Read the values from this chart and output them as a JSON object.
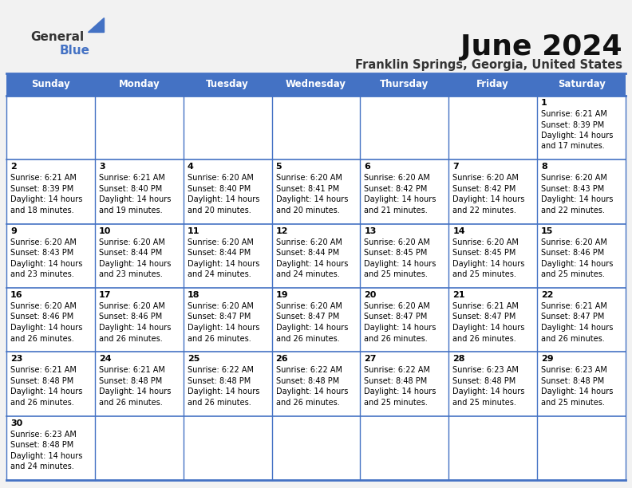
{
  "title": "June 2024",
  "subtitle": "Franklin Springs, Georgia, United States",
  "header_color": "#4472C4",
  "header_text_color": "#FFFFFF",
  "day_names": [
    "Sunday",
    "Monday",
    "Tuesday",
    "Wednesday",
    "Thursday",
    "Friday",
    "Saturday"
  ],
  "bg_color": "#F2F2F2",
  "cell_bg_white": "#FFFFFF",
  "border_color": "#4472C4",
  "number_color": "#000000",
  "text_color": "#000000",
  "days": [
    {
      "day": 1,
      "col": 6,
      "row": 0,
      "sunrise": "6:21 AM",
      "sunset": "8:39 PM",
      "dl1": "Daylight: 14 hours",
      "dl2": "and 17 minutes."
    },
    {
      "day": 2,
      "col": 0,
      "row": 1,
      "sunrise": "6:21 AM",
      "sunset": "8:39 PM",
      "dl1": "Daylight: 14 hours",
      "dl2": "and 18 minutes."
    },
    {
      "day": 3,
      "col": 1,
      "row": 1,
      "sunrise": "6:21 AM",
      "sunset": "8:40 PM",
      "dl1": "Daylight: 14 hours",
      "dl2": "and 19 minutes."
    },
    {
      "day": 4,
      "col": 2,
      "row": 1,
      "sunrise": "6:20 AM",
      "sunset": "8:40 PM",
      "dl1": "Daylight: 14 hours",
      "dl2": "and 20 minutes."
    },
    {
      "day": 5,
      "col": 3,
      "row": 1,
      "sunrise": "6:20 AM",
      "sunset": "8:41 PM",
      "dl1": "Daylight: 14 hours",
      "dl2": "and 20 minutes."
    },
    {
      "day": 6,
      "col": 4,
      "row": 1,
      "sunrise": "6:20 AM",
      "sunset": "8:42 PM",
      "dl1": "Daylight: 14 hours",
      "dl2": "and 21 minutes."
    },
    {
      "day": 7,
      "col": 5,
      "row": 1,
      "sunrise": "6:20 AM",
      "sunset": "8:42 PM",
      "dl1": "Daylight: 14 hours",
      "dl2": "and 22 minutes."
    },
    {
      "day": 8,
      "col": 6,
      "row": 1,
      "sunrise": "6:20 AM",
      "sunset": "8:43 PM",
      "dl1": "Daylight: 14 hours",
      "dl2": "and 22 minutes."
    },
    {
      "day": 9,
      "col": 0,
      "row": 2,
      "sunrise": "6:20 AM",
      "sunset": "8:43 PM",
      "dl1": "Daylight: 14 hours",
      "dl2": "and 23 minutes."
    },
    {
      "day": 10,
      "col": 1,
      "row": 2,
      "sunrise": "6:20 AM",
      "sunset": "8:44 PM",
      "dl1": "Daylight: 14 hours",
      "dl2": "and 23 minutes."
    },
    {
      "day": 11,
      "col": 2,
      "row": 2,
      "sunrise": "6:20 AM",
      "sunset": "8:44 PM",
      "dl1": "Daylight: 14 hours",
      "dl2": "and 24 minutes."
    },
    {
      "day": 12,
      "col": 3,
      "row": 2,
      "sunrise": "6:20 AM",
      "sunset": "8:44 PM",
      "dl1": "Daylight: 14 hours",
      "dl2": "and 24 minutes."
    },
    {
      "day": 13,
      "col": 4,
      "row": 2,
      "sunrise": "6:20 AM",
      "sunset": "8:45 PM",
      "dl1": "Daylight: 14 hours",
      "dl2": "and 25 minutes."
    },
    {
      "day": 14,
      "col": 5,
      "row": 2,
      "sunrise": "6:20 AM",
      "sunset": "8:45 PM",
      "dl1": "Daylight: 14 hours",
      "dl2": "and 25 minutes."
    },
    {
      "day": 15,
      "col": 6,
      "row": 2,
      "sunrise": "6:20 AM",
      "sunset": "8:46 PM",
      "dl1": "Daylight: 14 hours",
      "dl2": "and 25 minutes."
    },
    {
      "day": 16,
      "col": 0,
      "row": 3,
      "sunrise": "6:20 AM",
      "sunset": "8:46 PM",
      "dl1": "Daylight: 14 hours",
      "dl2": "and 26 minutes."
    },
    {
      "day": 17,
      "col": 1,
      "row": 3,
      "sunrise": "6:20 AM",
      "sunset": "8:46 PM",
      "dl1": "Daylight: 14 hours",
      "dl2": "and 26 minutes."
    },
    {
      "day": 18,
      "col": 2,
      "row": 3,
      "sunrise": "6:20 AM",
      "sunset": "8:47 PM",
      "dl1": "Daylight: 14 hours",
      "dl2": "and 26 minutes."
    },
    {
      "day": 19,
      "col": 3,
      "row": 3,
      "sunrise": "6:20 AM",
      "sunset": "8:47 PM",
      "dl1": "Daylight: 14 hours",
      "dl2": "and 26 minutes."
    },
    {
      "day": 20,
      "col": 4,
      "row": 3,
      "sunrise": "6:20 AM",
      "sunset": "8:47 PM",
      "dl1": "Daylight: 14 hours",
      "dl2": "and 26 minutes."
    },
    {
      "day": 21,
      "col": 5,
      "row": 3,
      "sunrise": "6:21 AM",
      "sunset": "8:47 PM",
      "dl1": "Daylight: 14 hours",
      "dl2": "and 26 minutes."
    },
    {
      "day": 22,
      "col": 6,
      "row": 3,
      "sunrise": "6:21 AM",
      "sunset": "8:47 PM",
      "dl1": "Daylight: 14 hours",
      "dl2": "and 26 minutes."
    },
    {
      "day": 23,
      "col": 0,
      "row": 4,
      "sunrise": "6:21 AM",
      "sunset": "8:48 PM",
      "dl1": "Daylight: 14 hours",
      "dl2": "and 26 minutes."
    },
    {
      "day": 24,
      "col": 1,
      "row": 4,
      "sunrise": "6:21 AM",
      "sunset": "8:48 PM",
      "dl1": "Daylight: 14 hours",
      "dl2": "and 26 minutes."
    },
    {
      "day": 25,
      "col": 2,
      "row": 4,
      "sunrise": "6:22 AM",
      "sunset": "8:48 PM",
      "dl1": "Daylight: 14 hours",
      "dl2": "and 26 minutes."
    },
    {
      "day": 26,
      "col": 3,
      "row": 4,
      "sunrise": "6:22 AM",
      "sunset": "8:48 PM",
      "dl1": "Daylight: 14 hours",
      "dl2": "and 26 minutes."
    },
    {
      "day": 27,
      "col": 4,
      "row": 4,
      "sunrise": "6:22 AM",
      "sunset": "8:48 PM",
      "dl1": "Daylight: 14 hours",
      "dl2": "and 25 minutes."
    },
    {
      "day": 28,
      "col": 5,
      "row": 4,
      "sunrise": "6:23 AM",
      "sunset": "8:48 PM",
      "dl1": "Daylight: 14 hours",
      "dl2": "and 25 minutes."
    },
    {
      "day": 29,
      "col": 6,
      "row": 4,
      "sunrise": "6:23 AM",
      "sunset": "8:48 PM",
      "dl1": "Daylight: 14 hours",
      "dl2": "and 25 minutes."
    },
    {
      "day": 30,
      "col": 0,
      "row": 5,
      "sunrise": "6:23 AM",
      "sunset": "8:48 PM",
      "dl1": "Daylight: 14 hours",
      "dl2": "and 24 minutes."
    }
  ],
  "num_rows": 6,
  "num_cols": 7
}
